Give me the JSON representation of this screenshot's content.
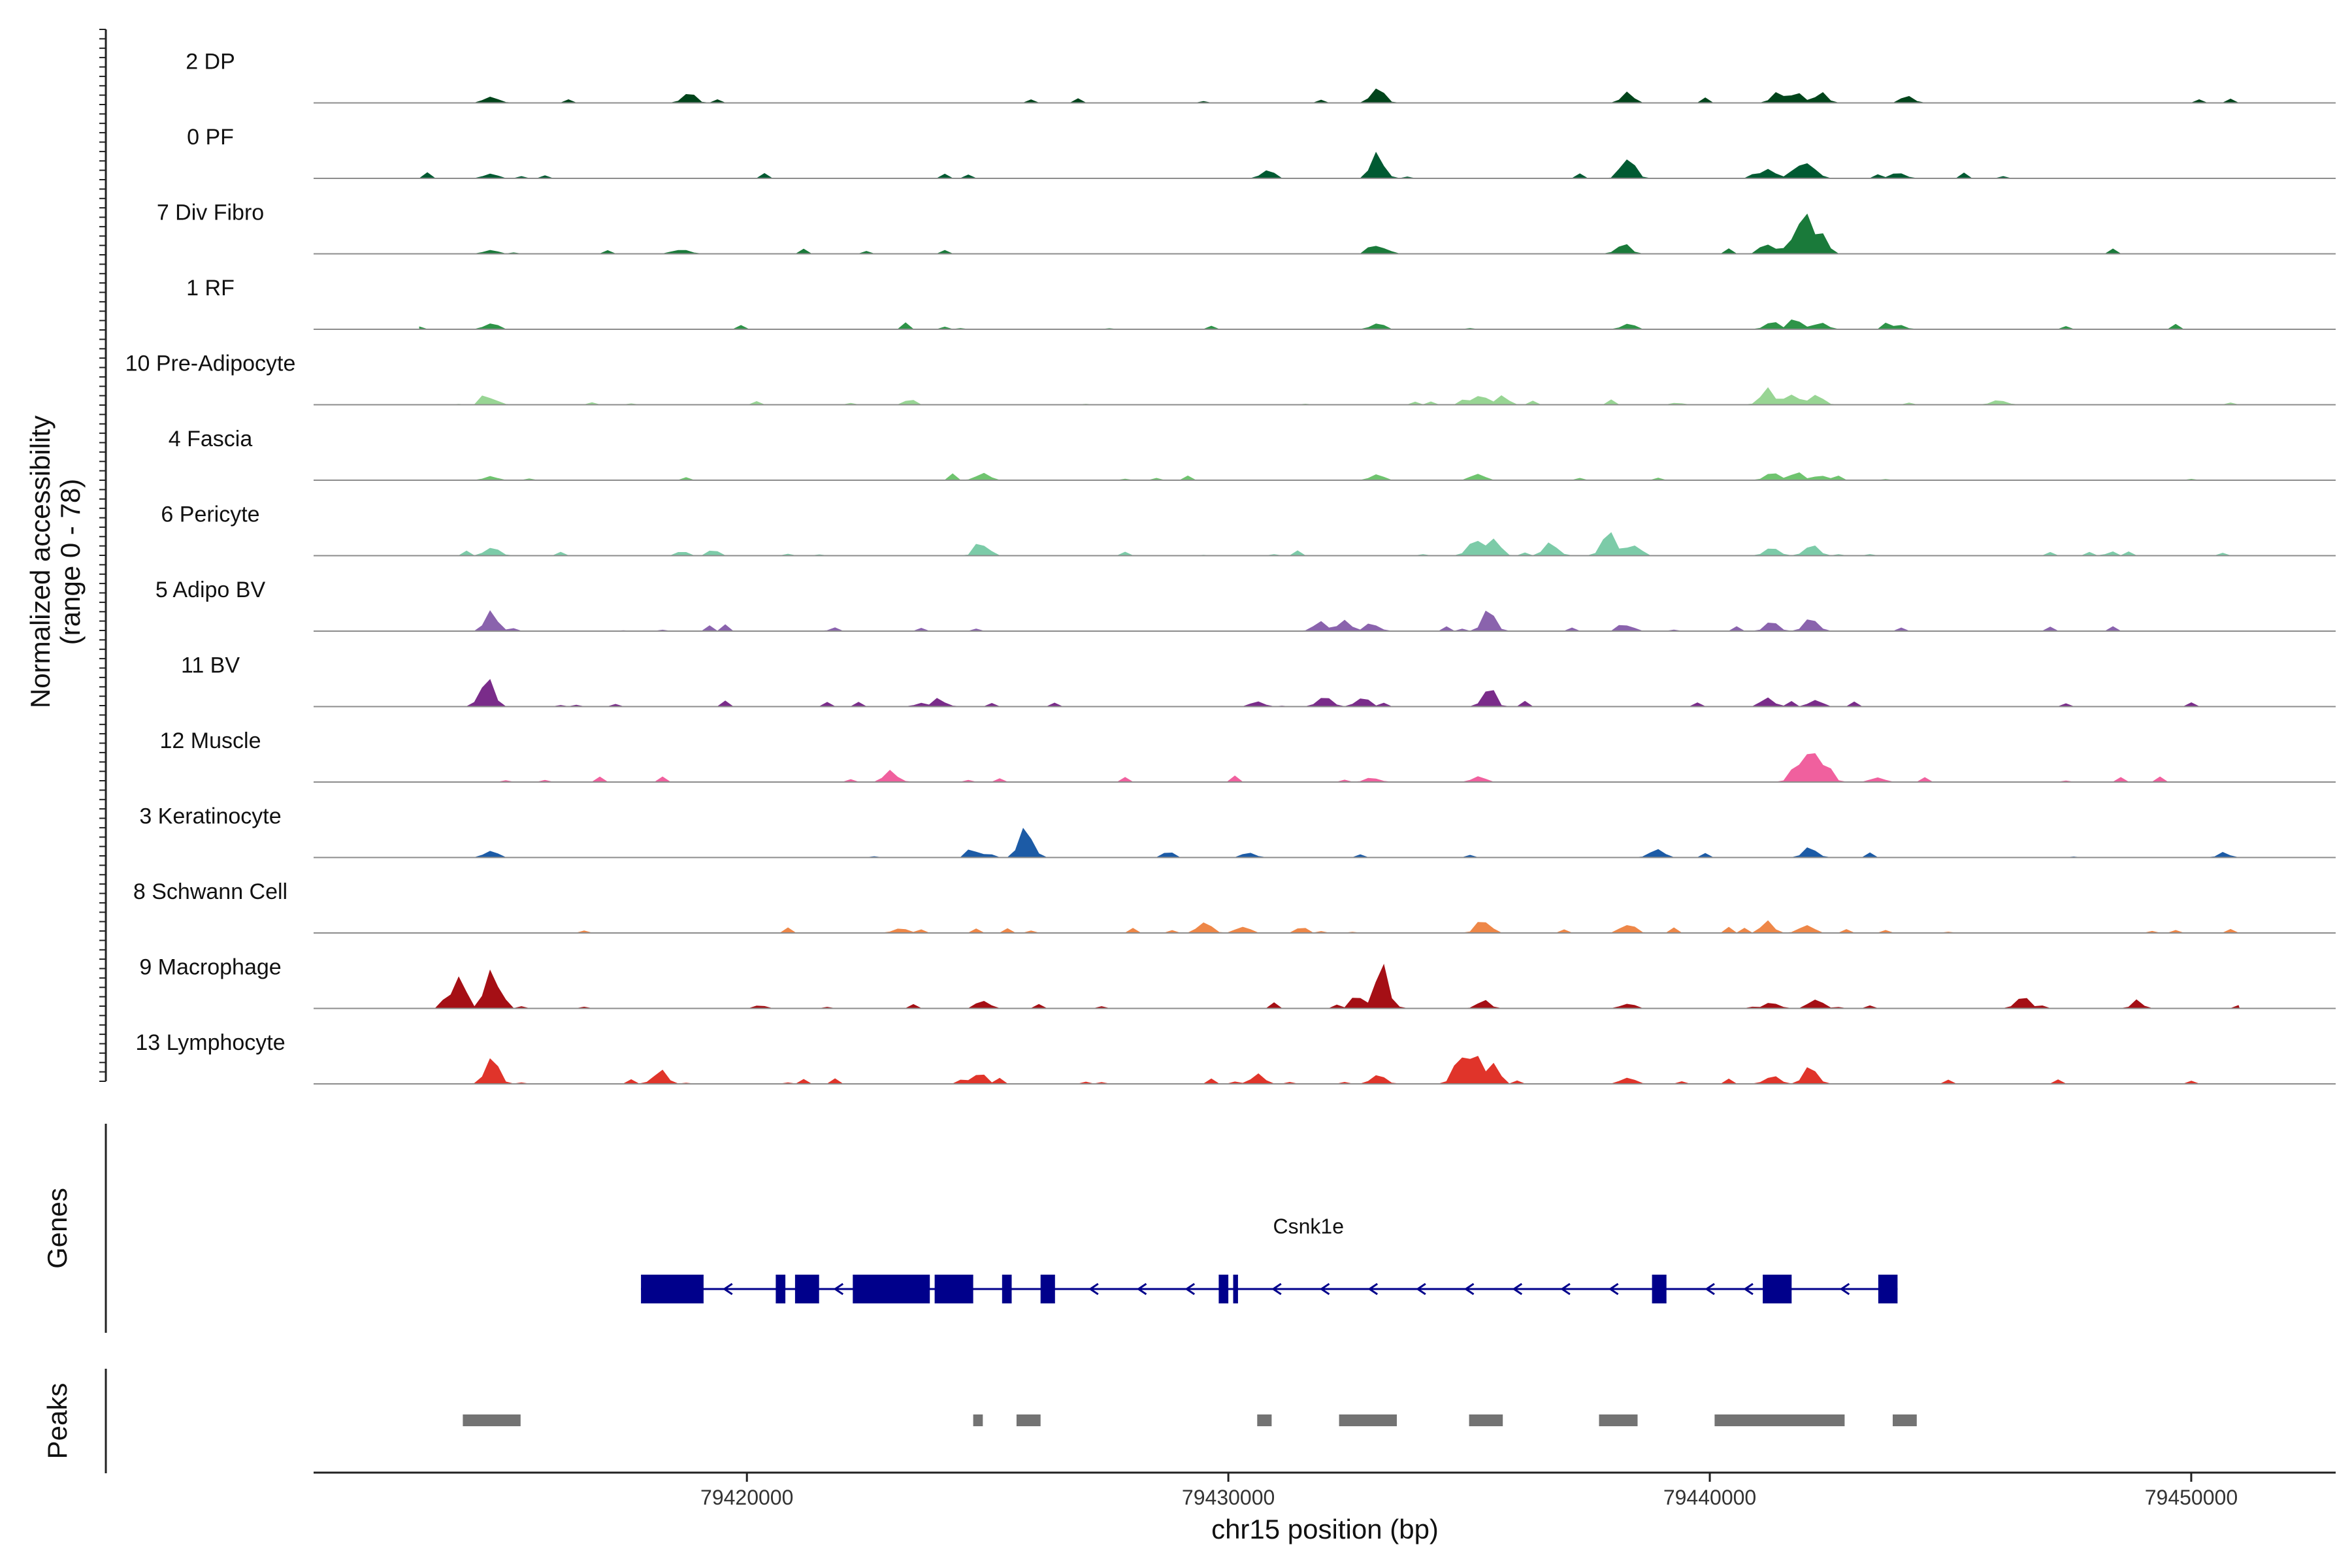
{
  "chart_data": {
    "type": "area",
    "subtype": "genome-coverage-tracks",
    "ylabel_lines": [
      "Normalized accessibility",
      "(range 0 - 78)"
    ],
    "y_range": [
      0,
      78
    ],
    "xlabel": "chr15 position (bp)",
    "xlim": [
      79411000,
      79453000
    ],
    "x_ticks": [
      79420000,
      79430000,
      79440000,
      79450000
    ],
    "x_tick_labels": [
      "79420000",
      "79430000",
      "79440000",
      "79450000"
    ],
    "genes_label": "Genes",
    "peaks_label": "Peaks",
    "tracks": [
      {
        "name": "2 DP",
        "color": "#00441b",
        "peaks": [
          [
            79414700,
            6
          ],
          [
            79418800,
            8
          ],
          [
            79433100,
            12
          ],
          [
            79438300,
            6
          ],
          [
            79441400,
            7
          ],
          [
            79441800,
            9
          ],
          [
            79442300,
            8
          ],
          [
            79444100,
            5
          ]
        ],
        "noise": 0.06
      },
      {
        "name": "0 PF",
        "color": "#005a32",
        "peaks": [
          [
            79414700,
            5
          ],
          [
            79430800,
            5
          ],
          [
            79433100,
            21
          ],
          [
            79438300,
            18
          ],
          [
            79441200,
            9
          ],
          [
            79441800,
            10
          ],
          [
            79442100,
            12
          ],
          [
            79443900,
            6
          ]
        ],
        "noise": 0.06
      },
      {
        "name": "7 Div Fibro",
        "color": "#1a7a3a",
        "peaks": [
          [
            79414700,
            4
          ],
          [
            79418700,
            4
          ],
          [
            79433100,
            7
          ],
          [
            79438200,
            8
          ],
          [
            79441200,
            10
          ],
          [
            79441700,
            14
          ],
          [
            79442000,
            27
          ],
          [
            79442300,
            16
          ]
        ],
        "noise": 0.07
      },
      {
        "name": "1 RF",
        "color": "#2e9448",
        "peaks": [
          [
            79414700,
            5
          ],
          [
            79433100,
            5
          ],
          [
            79438300,
            5
          ],
          [
            79441300,
            6
          ],
          [
            79441800,
            6
          ],
          [
            79442300,
            5
          ],
          [
            79443900,
            4
          ]
        ],
        "noise": 0.05
      },
      {
        "name": "10 Pre-Adipocyte",
        "color": "#98d594",
        "peaks": [
          [
            79414700,
            5
          ],
          [
            79435200,
            10
          ],
          [
            79435700,
            7
          ],
          [
            79441200,
            14
          ],
          [
            79441700,
            10
          ],
          [
            79442200,
            9
          ],
          [
            79446000,
            5
          ]
        ],
        "noise": 0.1
      },
      {
        "name": "4 Fascia",
        "color": "#6fc46f",
        "peaks": [
          [
            79414700,
            3
          ],
          [
            79424900,
            6
          ],
          [
            79433100,
            5
          ],
          [
            79435200,
            6
          ],
          [
            79441300,
            6
          ],
          [
            79441800,
            7
          ],
          [
            79442300,
            5
          ]
        ],
        "noise": 0.05
      },
      {
        "name": "6 Pericyte",
        "color": "#7ccba8",
        "peaks": [
          [
            79414700,
            9
          ],
          [
            79424900,
            11
          ],
          [
            79435100,
            13
          ],
          [
            79435500,
            18
          ],
          [
            79436700,
            12
          ],
          [
            79437900,
            18
          ],
          [
            79438400,
            12
          ],
          [
            79441300,
            8
          ],
          [
            79442100,
            11
          ]
        ],
        "noise": 0.1
      },
      {
        "name": "5 Adipo BV",
        "color": "#8a63ad",
        "peaks": [
          [
            79414700,
            17
          ],
          [
            79431900,
            7
          ],
          [
            79432400,
            9
          ],
          [
            79433000,
            7
          ],
          [
            79435400,
            17
          ],
          [
            79438300,
            4
          ],
          [
            79441300,
            7
          ],
          [
            79442100,
            11
          ]
        ],
        "noise": 0.08
      },
      {
        "name": "11 BV",
        "color": "#7a2c8a",
        "peaks": [
          [
            79414600,
            26
          ],
          [
            79424000,
            5
          ],
          [
            79430600,
            4
          ],
          [
            79432000,
            9
          ],
          [
            79432800,
            8
          ],
          [
            79435400,
            12
          ],
          [
            79441200,
            7
          ],
          [
            79442200,
            6
          ]
        ],
        "noise": 0.12
      },
      {
        "name": "12 Muscle",
        "color": "#f0609e",
        "peaks": [
          [
            79423000,
            9
          ],
          [
            79433000,
            4
          ],
          [
            79435200,
            4
          ],
          [
            79441800,
            12
          ],
          [
            79442100,
            22
          ],
          [
            79442400,
            15
          ],
          [
            79443500,
            4
          ]
        ],
        "noise": 0.08
      },
      {
        "name": "3 Keratinocyte",
        "color": "#1c5ba6",
        "peaks": [
          [
            79414700,
            6
          ],
          [
            79424800,
            5
          ],
          [
            79425800,
            25
          ],
          [
            79430400,
            4
          ],
          [
            79438900,
            9
          ],
          [
            79442100,
            9
          ],
          [
            79450700,
            3
          ]
        ],
        "noise": 0.06
      },
      {
        "name": "8 Schwann Cell",
        "color": "#ee8748",
        "peaks": [
          [
            79423200,
            5
          ],
          [
            79429500,
            11
          ],
          [
            79430300,
            6
          ],
          [
            79435300,
            12
          ],
          [
            79438300,
            8
          ],
          [
            79441200,
            9
          ],
          [
            79442000,
            8
          ]
        ],
        "noise": 0.1
      },
      {
        "name": "9 Macrophage",
        "color": "#a50f15",
        "peaks": [
          [
            79414000,
            25
          ],
          [
            79414700,
            42
          ],
          [
            79424900,
            6
          ],
          [
            79432700,
            10
          ],
          [
            79433200,
            32
          ],
          [
            79435300,
            7
          ],
          [
            79438300,
            5
          ],
          [
            79441300,
            6
          ],
          [
            79442200,
            9
          ],
          [
            79446500,
            13
          ],
          [
            79448900,
            4
          ]
        ],
        "noise": 0.12
      },
      {
        "name": "13 Lymphocyte",
        "color": "#e0342a",
        "peaks": [
          [
            79414700,
            25
          ],
          [
            79418200,
            13
          ],
          [
            79424800,
            10
          ],
          [
            79430600,
            9
          ],
          [
            79433100,
            10
          ],
          [
            79434800,
            18
          ],
          [
            79435100,
            24
          ],
          [
            79435500,
            16
          ],
          [
            79438300,
            7
          ],
          [
            79441300,
            8
          ],
          [
            79442100,
            14
          ]
        ],
        "noise": 0.12
      }
    ],
    "gene": {
      "name": "Csnk1e",
      "strand": "-",
      "start": 79417800,
      "end": 79443900,
      "color": "#00008b",
      "exons": [
        [
          79417800,
          79419100
        ],
        [
          79420600,
          79420800
        ],
        [
          79421000,
          79421500
        ],
        [
          79422200,
          79423800
        ],
        [
          79423900,
          79424700
        ],
        [
          79425300,
          79425500
        ],
        [
          79426100,
          79426400
        ],
        [
          79429800,
          79430000
        ],
        [
          79430100,
          79430200
        ],
        [
          79438800,
          79439100
        ],
        [
          79441100,
          79441700
        ],
        [
          79443500,
          79443900
        ]
      ],
      "arrows": [
        79419600,
        79421900,
        79427200,
        79428200,
        79429200,
        79431000,
        79432000,
        79433000,
        79434000,
        79435000,
        79436000,
        79437000,
        79438000,
        79440000,
        79440800,
        79442800
      ]
    },
    "peaks": [
      [
        79414100,
        79415300
      ],
      [
        79424700,
        79424900
      ],
      [
        79425600,
        79426100
      ],
      [
        79430600,
        79430900
      ],
      [
        79432300,
        79433500
      ],
      [
        79435000,
        79435700
      ],
      [
        79437700,
        79438500
      ],
      [
        79440100,
        79442800
      ],
      [
        79443800,
        79444300
      ]
    ]
  }
}
